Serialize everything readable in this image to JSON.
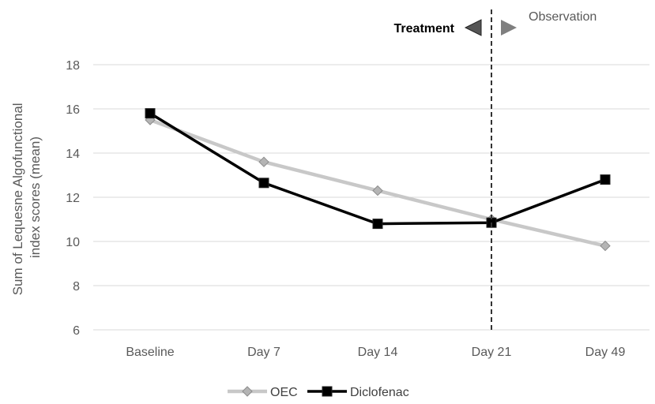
{
  "chart_data": {
    "type": "line",
    "categories": [
      "Baseline",
      "Day 7",
      "Day 14",
      "Day 21",
      "Day 49"
    ],
    "ylabel_lines": [
      "Sum of Lequesne Algofunctional",
      "index scores (mean)"
    ],
    "ylim": [
      6,
      18
    ],
    "yticks": [
      6,
      8,
      10,
      12,
      14,
      16,
      18
    ],
    "grid": true,
    "legend_position": "bottom",
    "series": [
      {
        "name": "OEC",
        "values": [
          15.5,
          13.6,
          12.3,
          11.0,
          9.8
        ],
        "color": "#c8c8c8",
        "marker": "diamond"
      },
      {
        "name": "Diclofenac",
        "values": [
          15.8,
          12.65,
          10.8,
          10.85,
          12.8
        ],
        "color": "#000000",
        "marker": "square"
      }
    ],
    "annotations": {
      "divider_after_category": "Day 21",
      "left_phase": "Treatment",
      "right_phase": "Observation"
    }
  }
}
